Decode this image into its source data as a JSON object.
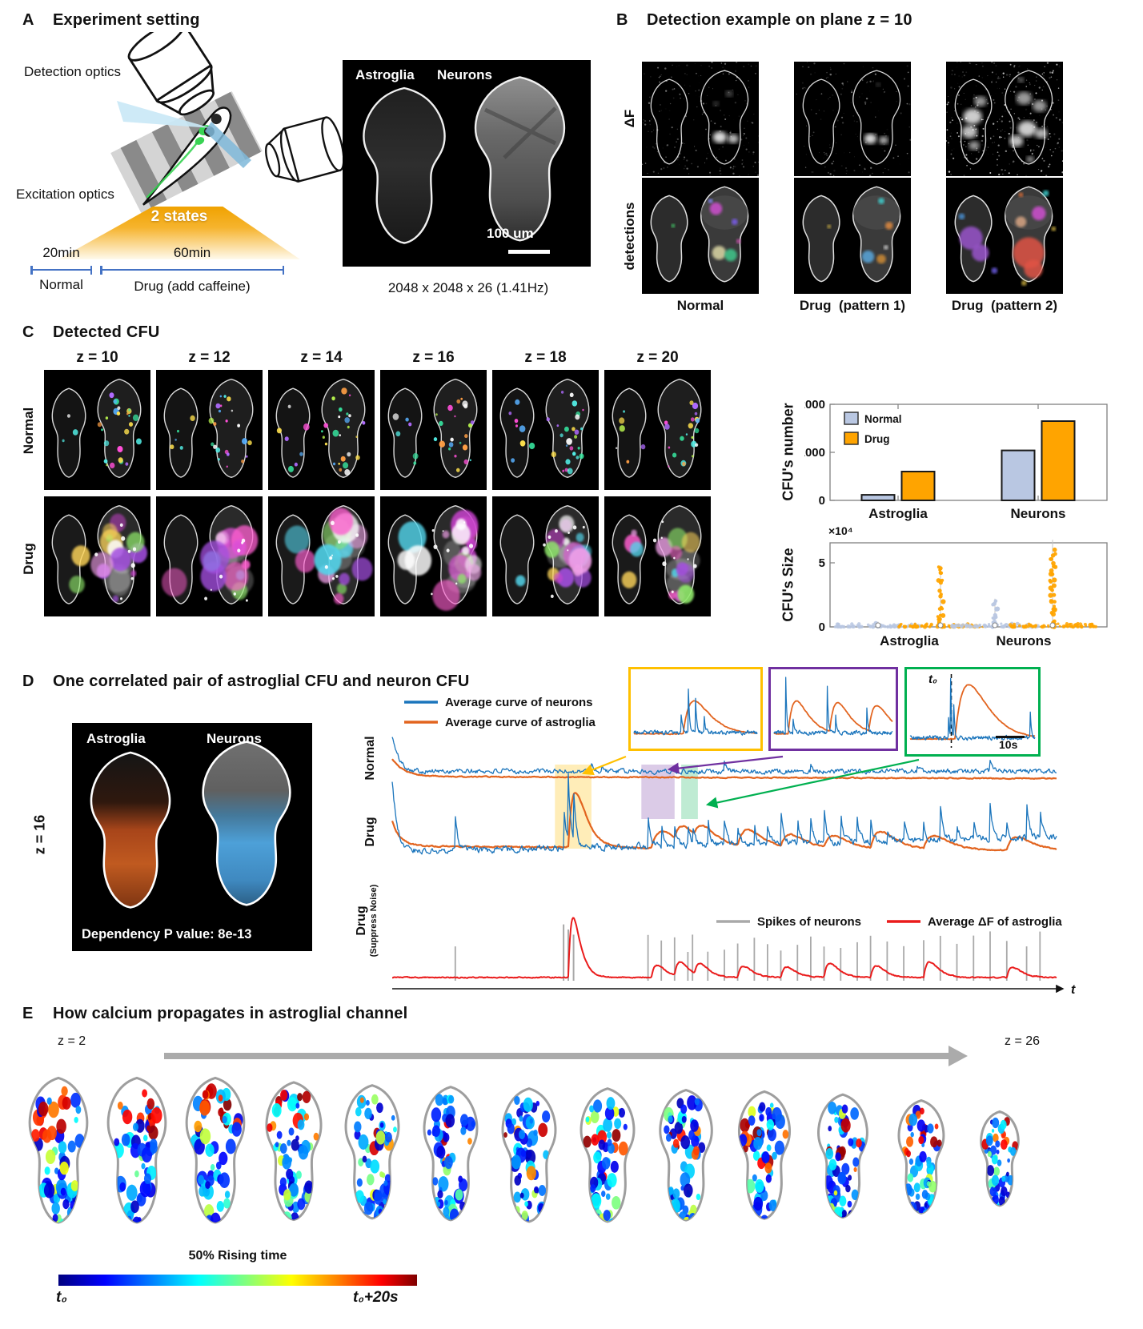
{
  "panelA": {
    "label": "A",
    "title": "Experiment setting",
    "detection_optics_label": "Detection optics",
    "excitation_optics_label": "Excitation optics",
    "states_badge": "2 states",
    "timeline": {
      "normal_duration": "20min",
      "drug_duration": "60min",
      "normal_label": "Normal",
      "drug_label": "Drug (add caffeine)"
    },
    "micrograph": {
      "left_label": "Astroglia",
      "right_label": "Neurons",
      "scale_bar": "100 um",
      "caption": "2048 x 2048 x 26 (1.41Hz)"
    }
  },
  "panelB": {
    "label": "B",
    "title": "Detection example on plane z = 10",
    "row_labels": [
      "ΔF",
      "detections"
    ],
    "col_labels": [
      "Normal",
      "Drug  (pattern 1)",
      "Drug  (pattern 2)"
    ]
  },
  "panelC": {
    "label": "C",
    "title": "Detected CFU",
    "z_labels": [
      "z = 10",
      "z = 12",
      "z = 14",
      "z = 16",
      "z = 18",
      "z = 20"
    ],
    "row_labels": [
      "Normal",
      "Drug"
    ]
  },
  "panelD": {
    "label": "D",
    "title": "One correlated pair of astroglial CFU and neuron CFU",
    "z_label": "z = 16",
    "micrograph": {
      "left_label": "Astroglia",
      "right_label": "Neurons",
      "p_value": "Dependency P value: 8e-13"
    },
    "row_labels": {
      "r1": "Normal",
      "r2": "Drug",
      "r3a": "Drug",
      "r3b": "(Suppress Noise)"
    },
    "inset": {
      "t0": "t₀",
      "scale": "10s"
    }
  },
  "panelE": {
    "label": "E",
    "title": "How calcium propagates in astroglial channel",
    "z_start": "z = 2",
    "z_end": "z = 26",
    "colorbar": {
      "title": "50% Rising time",
      "left": "t₀",
      "right": "t₀+20s"
    }
  },
  "chart_data": [
    {
      "id": "cfu-number",
      "type": "bar",
      "ylabel": "CFU's number",
      "categories": [
        "Astroglia",
        "Neurons"
      ],
      "series": [
        {
          "name": "Normal",
          "color": "#b9c7e2",
          "values": [
            115,
            1040
          ]
        },
        {
          "name": "Drug",
          "color": "#ffa400",
          "values": [
            600,
            1650
          ]
        }
      ],
      "ylim": [
        0,
        2000
      ],
      "yticks": [
        0,
        1000,
        2000
      ],
      "legend_position": "top-left",
      "grid": false
    },
    {
      "id": "cfu-size",
      "type": "scatter",
      "ylabel": "CFU's Size",
      "y_scale_label": "×10⁴",
      "categories": [
        "Astroglia",
        "Neurons"
      ],
      "groups": [
        {
          "category": "Astroglia",
          "condition": "Normal",
          "color": "#b9c7e2",
          "tail_max": 4000
        },
        {
          "category": "Astroglia",
          "condition": "Drug",
          "color": "#ffa400",
          "tail_max": 48000
        },
        {
          "category": "Neurons",
          "condition": "Normal",
          "color": "#b9c7e2",
          "tail_max": 22000
        },
        {
          "category": "Neurons",
          "condition": "Drug",
          "color": "#ffa400",
          "tail_max": 68000
        }
      ],
      "ylim": [
        0,
        70000
      ],
      "yticks": [
        0,
        50000
      ]
    },
    {
      "id": "correlated-traces",
      "type": "line",
      "rows": [
        "Normal",
        "Drug",
        "Drug (Suppress Noise)"
      ],
      "xlabel": "t",
      "series": [
        {
          "name": "Average curve of neurons",
          "color": "#1b75bc"
        },
        {
          "name": "Average curve of astroglia",
          "color": "#e2641f"
        },
        {
          "name": "Spikes of neurons",
          "color": "#a9a9a9"
        },
        {
          "name": "Average ΔF of astroglia",
          "color": "#ea1c1c"
        }
      ],
      "main_event_time": 0.265,
      "normal_neuron_bump_times": [
        0.3,
        0.315,
        0.5,
        0.63,
        0.79,
        0.9
      ],
      "drug_neuron_spike_times": [
        0.095,
        0.385,
        0.405,
        0.425,
        0.445,
        0.452,
        0.475,
        0.5,
        0.52,
        0.545,
        0.565,
        0.585,
        0.61,
        0.63,
        0.65,
        0.675,
        0.7,
        0.72,
        0.745,
        0.77,
        0.8,
        0.825,
        0.85,
        0.875,
        0.9,
        0.925,
        0.955,
        0.975
      ],
      "drug_astroglia_event_times": [
        0.265,
        0.39,
        0.425,
        0.455,
        0.52,
        0.585,
        0.65,
        0.72,
        0.8,
        0.925
      ],
      "highlight_regions": [
        {
          "color": "#ffc000",
          "start": 0.245,
          "end": 0.3
        },
        {
          "color": "#7030a0",
          "start": 0.375,
          "end": 0.425
        },
        {
          "color": "#00b050",
          "start": 0.435,
          "end": 0.46
        }
      ]
    }
  ]
}
